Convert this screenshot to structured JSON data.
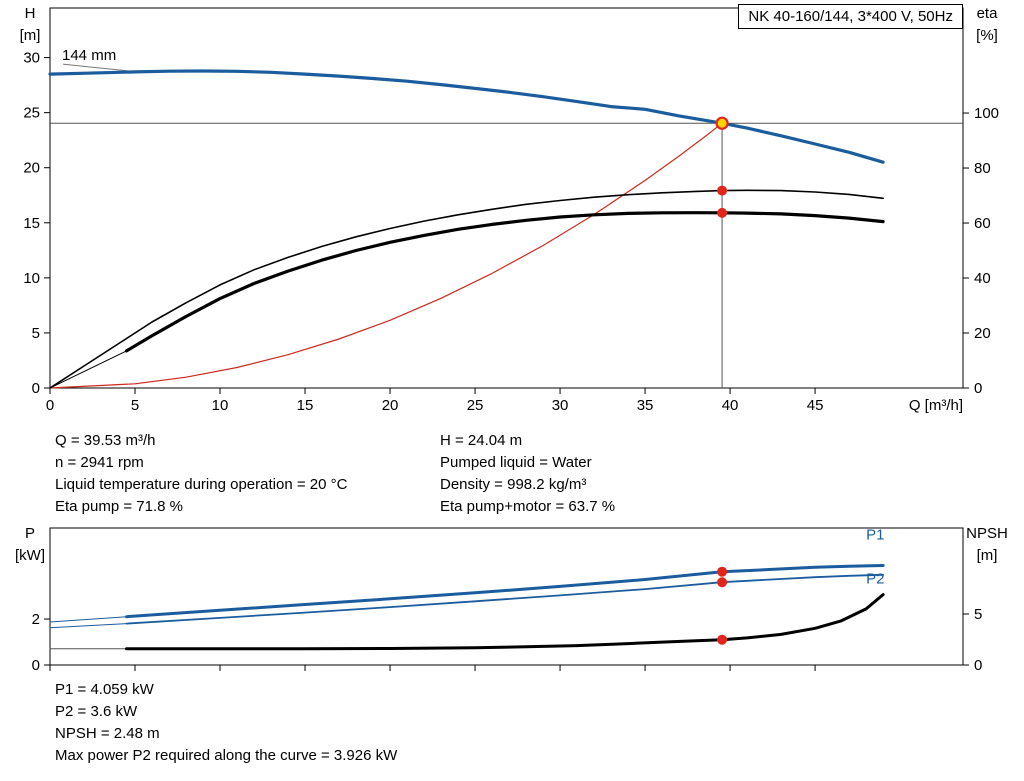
{
  "title_box": "NK 40-160/144, 3*400 V, 50Hz",
  "impeller_label": "144 mm",
  "info_top": {
    "left": [
      "Q = 39.53 m³/h",
      "n = 2941 rpm",
      "Liquid temperature during operation = 20 °C",
      "Eta pump = 71.8 %"
    ],
    "right": [
      "H = 24.04 m",
      "Pumped liquid = Water",
      "Density = 998.2 kg/m³",
      "Eta pump+motor = 63.7 %"
    ]
  },
  "info_bottom": [
    "P1 = 4.059 kW",
    "P2 = 3.6 kW",
    "NPSH = 2.48 m",
    "Max power P2 required along the curve = 3.926 kW"
  ],
  "colors": {
    "curve_blue": "#1a5c9e",
    "dot_red": "#e1251b",
    "system_red": "#cc2a1f",
    "op_yellow": "#ffd400",
    "guide_gray": "#555555"
  },
  "chart_data": [
    {
      "type": "line",
      "name": "hq-eta-chart",
      "x_axis": {
        "label": "Q [m³/h]",
        "ticks": [
          0,
          5,
          10,
          15,
          20,
          25,
          30,
          35,
          40,
          45
        ],
        "range": [
          0,
          53.7
        ],
        "show_labels": true
      },
      "left_axis": {
        "label": [
          "H",
          "[m]"
        ],
        "ticks": [
          0,
          5,
          10,
          15,
          20,
          25,
          30
        ],
        "range": [
          0,
          34.5
        ]
      },
      "right_axis": {
        "label": [
          "eta",
          "[%]"
        ],
        "ticks": [
          0,
          20,
          40,
          60,
          80,
          100
        ],
        "range": [
          0,
          138.2
        ]
      },
      "guides": {
        "q": 39.53,
        "h": 24.04
      },
      "series": [
        {
          "name": "impeller-leader-line",
          "axis": "left",
          "color": "#777777",
          "width": 1,
          "points": [
            [
              0.8,
              29.4
            ],
            [
              4.8,
              28.75
            ]
          ]
        },
        {
          "name": "system-curve",
          "axis": "left",
          "color": "#cc2a1f",
          "width": 1.2,
          "points": [
            [
              0,
              0
            ],
            [
              5,
              0.38
            ],
            [
              8,
              0.98
            ],
            [
              11,
              1.86
            ],
            [
              14,
              3.02
            ],
            [
              17,
              4.45
            ],
            [
              20,
              6.15
            ],
            [
              23,
              8.14
            ],
            [
              26,
              10.4
            ],
            [
              29,
              12.94
            ],
            [
              32,
              15.75
            ],
            [
              35,
              18.85
            ],
            [
              37,
              21.06
            ],
            [
              38.5,
              22.8
            ],
            [
              39.53,
              24.04
            ]
          ]
        },
        {
          "name": "eta-pump-curve",
          "axis": "right",
          "color": "#000000",
          "width": 1.6,
          "points": [
            [
              0,
              0
            ],
            [
              2,
              8
            ],
            [
              4,
              16
            ],
            [
              6,
              24
            ],
            [
              8,
              31
            ],
            [
              10,
              37.5
            ],
            [
              12,
              43
            ],
            [
              14,
              47.5
            ],
            [
              16,
              51.5
            ],
            [
              18,
              55
            ],
            [
              20,
              58
            ],
            [
              22,
              60.7
            ],
            [
              24,
              63
            ],
            [
              26,
              65
            ],
            [
              28,
              66.8
            ],
            [
              30,
              68.2
            ],
            [
              32,
              69.4
            ],
            [
              34,
              70.3
            ],
            [
              36,
              71.0
            ],
            [
              38,
              71.5
            ],
            [
              39.53,
              71.8
            ],
            [
              41,
              71.9
            ],
            [
              43,
              71.8
            ],
            [
              45,
              71.3
            ],
            [
              47,
              70.4
            ],
            [
              49,
              69.0
            ]
          ]
        },
        {
          "name": "eta-pump-motor-lead",
          "axis": "right",
          "color": "#000000",
          "width": 1,
          "points": [
            [
              0,
              0
            ],
            [
              4.5,
              13.5
            ]
          ]
        },
        {
          "name": "eta-pump-motor-curve",
          "axis": "right",
          "color": "#000000",
          "width": 3.2,
          "points": [
            [
              4.5,
              13.5
            ],
            [
              6,
              19
            ],
            [
              8,
              26
            ],
            [
              10,
              32.5
            ],
            [
              12,
              38
            ],
            [
              14,
              42.5
            ],
            [
              16,
              46.5
            ],
            [
              18,
              50
            ],
            [
              20,
              53
            ],
            [
              22,
              55.5
            ],
            [
              24,
              57.7
            ],
            [
              26,
              59.5
            ],
            [
              28,
              61
            ],
            [
              30,
              62.2
            ],
            [
              32,
              63.0
            ],
            [
              34,
              63.5
            ],
            [
              36,
              63.7
            ],
            [
              38,
              63.75
            ],
            [
              39.53,
              63.7
            ],
            [
              41,
              63.6
            ],
            [
              43,
              63.3
            ],
            [
              45,
              62.7
            ],
            [
              47,
              61.8
            ],
            [
              49,
              60.5
            ]
          ]
        },
        {
          "name": "head-curve",
          "axis": "left",
          "color": "#1a5c9e",
          "width": 3.2,
          "points": [
            [
              0,
              28.5
            ],
            [
              3,
              28.62
            ],
            [
              5,
              28.7
            ],
            [
              7,
              28.76
            ],
            [
              9,
              28.78
            ],
            [
              11,
              28.75
            ],
            [
              13,
              28.66
            ],
            [
              15,
              28.5
            ],
            [
              17,
              28.32
            ],
            [
              19,
              28.1
            ],
            [
              21,
              27.85
            ],
            [
              23,
              27.55
            ],
            [
              25,
              27.2
            ],
            [
              27,
              26.85
            ],
            [
              29,
              26.45
            ],
            [
              31,
              26.0
            ],
            [
              33,
              25.55
            ],
            [
              35,
              25.3
            ],
            [
              37,
              24.7
            ],
            [
              39.53,
              24.04
            ],
            [
              41,
              23.6
            ],
            [
              43,
              22.9
            ],
            [
              45,
              22.15
            ],
            [
              47,
              21.4
            ],
            [
              49,
              20.5
            ]
          ]
        }
      ],
      "markers": [
        {
          "name": "duty-point-eta-pump",
          "q": 39.53,
          "v": 71.8,
          "axis": "right",
          "kind": "dot"
        },
        {
          "name": "duty-point-eta-pump-motor",
          "q": 39.53,
          "v": 63.7,
          "axis": "right",
          "kind": "dot"
        },
        {
          "name": "operating-point",
          "q": 39.53,
          "v": 24.04,
          "axis": "left",
          "kind": "op"
        }
      ]
    },
    {
      "type": "line",
      "name": "power-npsh-chart",
      "x_axis": {
        "label": "",
        "ticks": [
          0,
          5,
          10,
          15,
          20,
          25,
          30,
          35,
          40,
          45
        ],
        "range": [
          0,
          53.7
        ],
        "show_labels": false
      },
      "left_axis": {
        "label": [
          "P",
          "[kW]"
        ],
        "ticks": [
          0,
          2
        ],
        "range": [
          0,
          5.96
        ]
      },
      "right_axis": {
        "label": [
          "NPSH",
          "[m]"
        ],
        "ticks": [
          0,
          5
        ],
        "range": [
          0,
          13.43
        ]
      },
      "series": [
        {
          "name": "p1-lead",
          "axis": "left",
          "color": "#1a5c9e",
          "width": 1,
          "points": [
            [
              0,
              1.87
            ],
            [
              4.5,
              2.1
            ]
          ]
        },
        {
          "name": "p1-curve",
          "axis": "left",
          "color": "#1a5c9e",
          "width": 3,
          "label": "P1",
          "label_q": 48.0,
          "label_v": 5.45,
          "points": [
            [
              4.5,
              2.1
            ],
            [
              10,
              2.38
            ],
            [
              15,
              2.63
            ],
            [
              20,
              2.88
            ],
            [
              25,
              3.14
            ],
            [
              30,
              3.42
            ],
            [
              35,
              3.72
            ],
            [
              39.53,
              4.059
            ],
            [
              42,
              4.14
            ],
            [
              45,
              4.25
            ],
            [
              47,
              4.3
            ],
            [
              49,
              4.33
            ]
          ]
        },
        {
          "name": "p2-lead",
          "axis": "left",
          "color": "#1a5c9e",
          "width": 1,
          "points": [
            [
              0,
              1.62
            ],
            [
              4.5,
              1.8
            ]
          ]
        },
        {
          "name": "p2-curve",
          "axis": "left",
          "color": "#1a5c9e",
          "width": 1.8,
          "label": "P2",
          "label_q": 48.0,
          "label_v": 3.55,
          "points": [
            [
              4.5,
              1.8
            ],
            [
              10,
              2.05
            ],
            [
              15,
              2.28
            ],
            [
              20,
              2.52
            ],
            [
              25,
              2.77
            ],
            [
              30,
              3.03
            ],
            [
              35,
              3.3
            ],
            [
              39.53,
              3.6
            ],
            [
              42,
              3.7
            ],
            [
              45,
              3.82
            ],
            [
              47,
              3.88
            ],
            [
              49,
              3.926
            ]
          ]
        },
        {
          "name": "npsh-lead",
          "axis": "right",
          "color": "#555555",
          "width": 1,
          "points": [
            [
              0,
              1.6
            ],
            [
              4.5,
              1.6
            ]
          ]
        },
        {
          "name": "npsh-curve",
          "axis": "right",
          "color": "#000000",
          "width": 3,
          "points": [
            [
              4.5,
              1.6
            ],
            [
              10,
              1.6
            ],
            [
              15,
              1.6
            ],
            [
              20,
              1.62
            ],
            [
              25,
              1.7
            ],
            [
              28,
              1.78
            ],
            [
              31,
              1.9
            ],
            [
              34,
              2.1
            ],
            [
              36,
              2.24
            ],
            [
              38,
              2.38
            ],
            [
              39.53,
              2.48
            ],
            [
              41,
              2.66
            ],
            [
              43,
              3.0
            ],
            [
              45,
              3.6
            ],
            [
              46.5,
              4.3
            ],
            [
              48,
              5.5
            ],
            [
              49,
              6.9
            ]
          ]
        }
      ],
      "markers": [
        {
          "name": "duty-point-p1",
          "q": 39.53,
          "v": 4.059,
          "axis": "left",
          "kind": "dot"
        },
        {
          "name": "duty-point-p2",
          "q": 39.53,
          "v": 3.6,
          "axis": "left",
          "kind": "dot"
        },
        {
          "name": "duty-point-npsh",
          "q": 39.53,
          "v": 2.48,
          "axis": "right",
          "kind": "dot"
        }
      ]
    }
  ]
}
